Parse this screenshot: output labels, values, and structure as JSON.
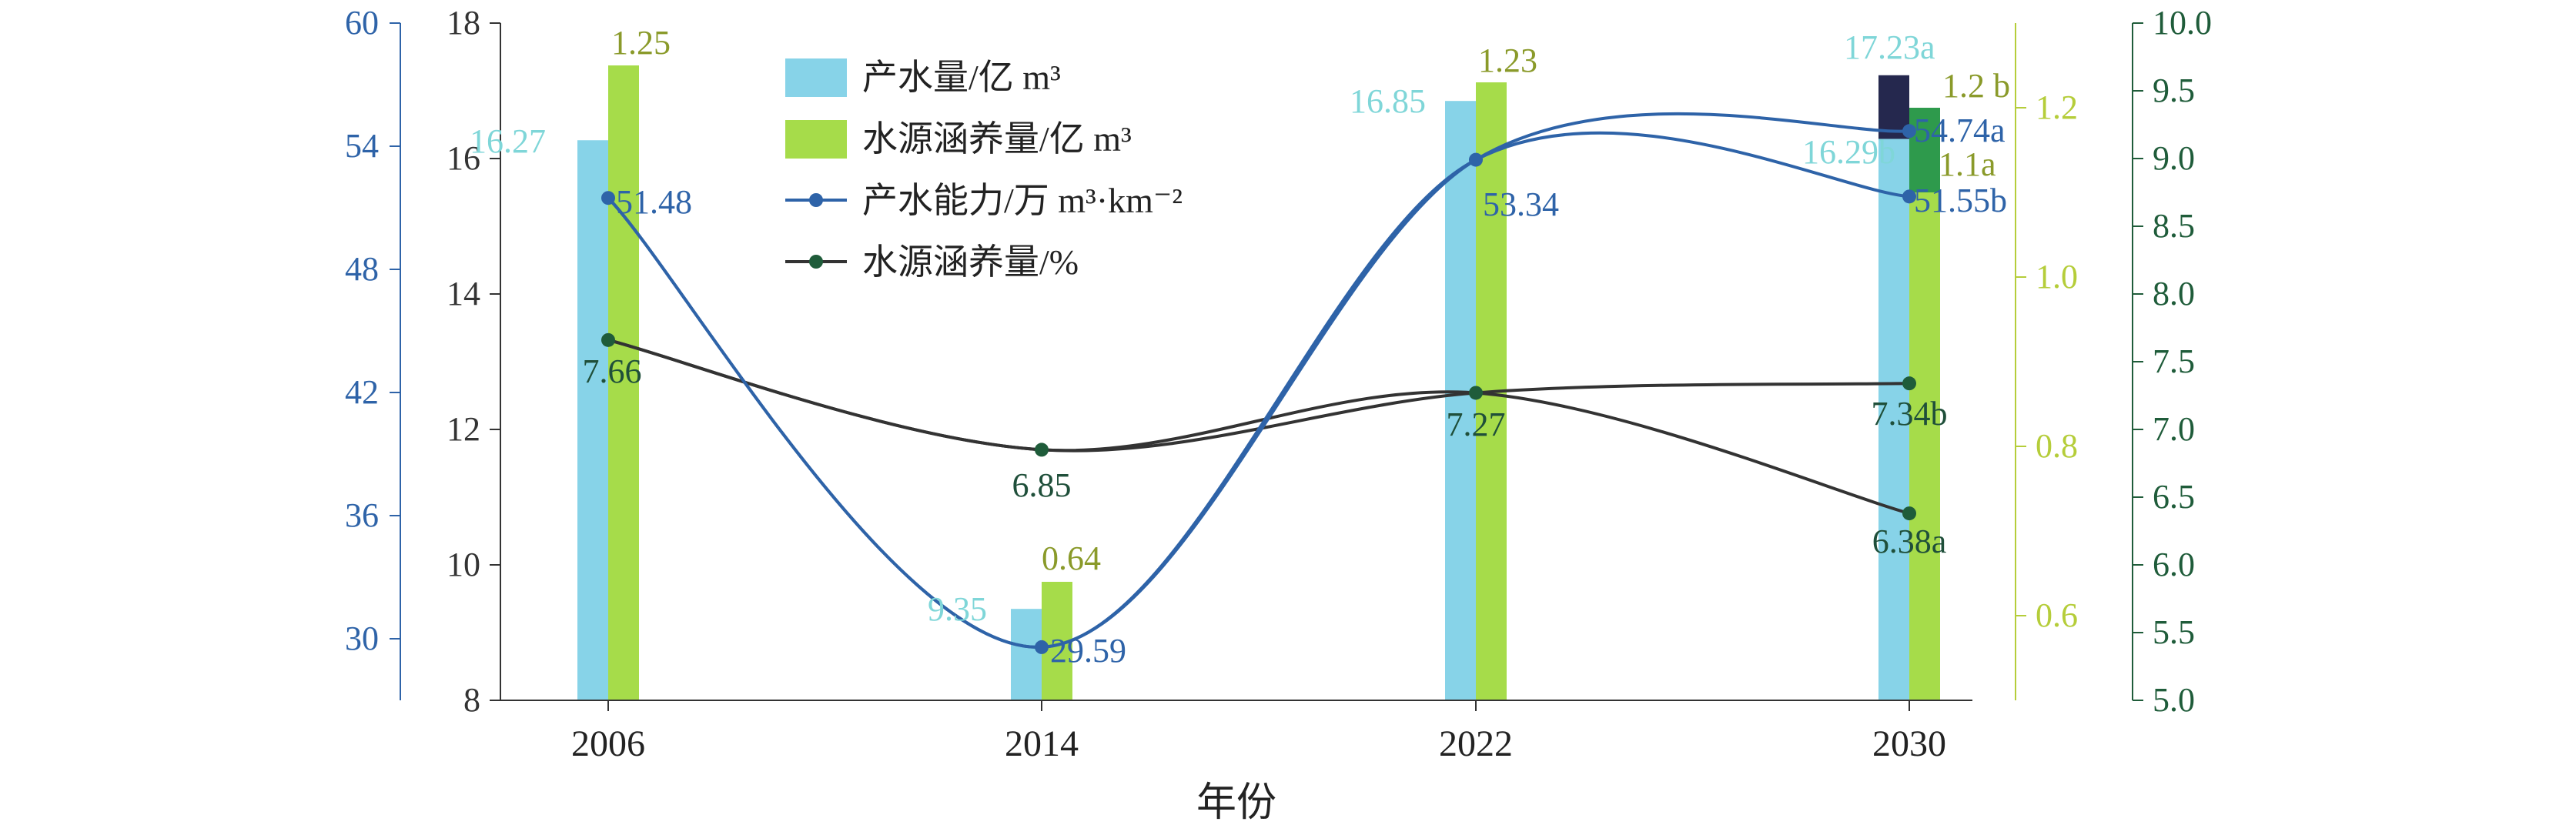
{
  "chart_data": {
    "type": "bar+line",
    "xlabel": "年份",
    "categories": [
      "2006",
      "2014",
      "2022",
      "2030"
    ],
    "axes": {
      "left_outer": {
        "ylim": [
          27,
          60
        ],
        "ticks": [
          "30",
          "36",
          "42",
          "48",
          "54",
          "60"
        ],
        "color": "#2e63a8"
      },
      "left_inner": {
        "ylim": [
          8,
          18
        ],
        "ticks": [
          "8",
          "10",
          "12",
          "14",
          "16",
          "18"
        ],
        "color": "#333333"
      },
      "right_inner": {
        "ylim": [
          0.5,
          1.3
        ],
        "ticks": [
          "0.6",
          "0.8",
          "1.0",
          "1.2"
        ],
        "color": "#b5cd3a"
      },
      "right_outer": {
        "ylim": [
          5.0,
          10.0
        ],
        "ticks": [
          "5.0",
          "5.5",
          "6.0",
          "6.5",
          "7.0",
          "7.5",
          "8.0",
          "8.5",
          "9.0",
          "9.5",
          "10.0"
        ],
        "color": "#1f5c3a"
      }
    },
    "bars": {
      "water_yield": {
        "legend": "产水量/亿 m³",
        "color": "#87d3e8",
        "values": [
          16.27,
          9.35,
          16.85,
          16.29
        ],
        "labels": [
          "16.27",
          "9.35",
          "16.85",
          "16.29b"
        ],
        "label_color": "#7fd6d8",
        "extra_2030": {
          "value": 17.23,
          "label": "17.23a",
          "color": "#25284e"
        }
      },
      "conservation_amount": {
        "legend": "水源涵养量/亿 m³",
        "color": "#a6dc4a",
        "values": [
          1.25,
          0.64,
          1.23,
          1.1
        ],
        "labels": [
          "1.25",
          "0.64",
          "1.23",
          "1.1a"
        ],
        "label_color": "#8a9a2a",
        "extra_2030": {
          "value": 1.2,
          "label": "1.2 b",
          "color": "#2e9a4c"
        }
      }
    },
    "lines": {
      "yield_capacity": {
        "legend": "产水能力/万 m³·km⁻²",
        "color": "#2e63a8",
        "values": [
          51.48,
          29.59,
          53.34,
          51.55
        ],
        "labels": [
          "51.48",
          "29.59",
          "53.34",
          "51.55b"
        ],
        "extra_2030": {
          "value": 54.74,
          "label": "54.74a"
        }
      },
      "conservation_percent": {
        "legend": "水源涵养量/%",
        "color": "#333333",
        "marker_color": "#1f5c3a",
        "values": [
          7.66,
          6.85,
          7.27,
          7.34
        ],
        "labels": [
          "7.66",
          "6.85",
          "7.27",
          "7.34b"
        ],
        "extra_2030": {
          "value": 6.38,
          "label": "6.38a"
        }
      }
    },
    "legend_position": "top-left"
  }
}
